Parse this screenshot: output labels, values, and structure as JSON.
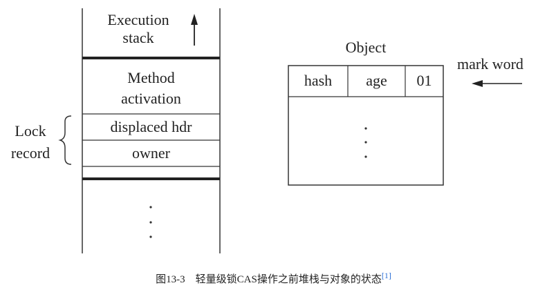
{
  "stack": {
    "execution_stack": "Execution\nstack",
    "method_activation": "Method\nactivation",
    "displaced_hdr": "displaced hdr",
    "owner": "owner"
  },
  "lock_record": {
    "label": "Lock\nrecord"
  },
  "object": {
    "title": "Object",
    "header_cells": [
      "hash",
      "age",
      "01"
    ]
  },
  "mark_word": {
    "label": "mark word"
  },
  "caption": {
    "text": "图13-3　轻量级锁CAS操作之前堆栈与对象的状态",
    "ref": "[1]"
  }
}
